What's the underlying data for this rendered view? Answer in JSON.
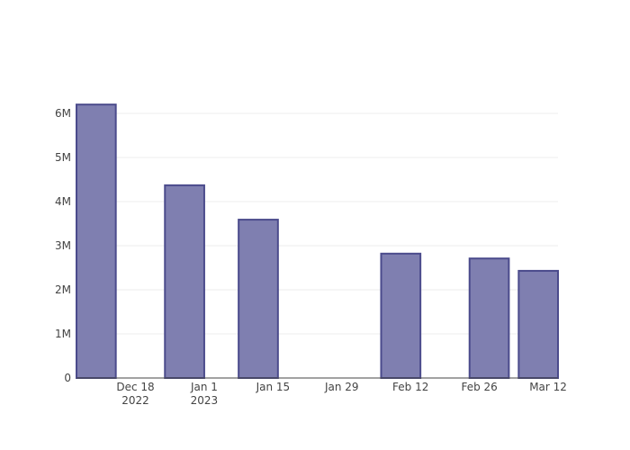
{
  "chart_data": {
    "type": "bar",
    "x": [
      "2022-12-10",
      "2022-12-28",
      "2023-01-12",
      "2023-02-10",
      "2023-02-28",
      "2023-03-10"
    ],
    "values": [
      6200000,
      4370000,
      3590000,
      2820000,
      2710000,
      2430000
    ],
    "color": "#7f7fb0",
    "edge_color": "#4b4b8c",
    "xlim": [
      "2022-12-06",
      "2023-03-14"
    ],
    "xticks": [
      {
        "value": "2022-12-18",
        "label": "Dec 18\n2022"
      },
      {
        "value": "2023-01-01",
        "label": "Jan 1\n2023"
      },
      {
        "value": "2023-01-15",
        "label": "Jan 15"
      },
      {
        "value": "2023-01-29",
        "label": "Jan 29"
      },
      {
        "value": "2023-02-12",
        "label": "Feb 12"
      },
      {
        "value": "2023-02-26",
        "label": "Feb 26"
      },
      {
        "value": "2023-03-12",
        "label": "Mar 12"
      }
    ],
    "ylim": [
      0,
      6530000
    ],
    "yticks": [
      0,
      {
        "value": 1000000,
        "label": "1M"
      },
      {
        "value": 2000000,
        "label": "2M"
      },
      {
        "value": 3000000,
        "label": "3M"
      },
      {
        "value": 4000000,
        "label": "4M"
      },
      {
        "value": 5000000,
        "label": "5M"
      },
      {
        "value": 6000000,
        "label": "6M"
      }
    ],
    "grid": true
  }
}
